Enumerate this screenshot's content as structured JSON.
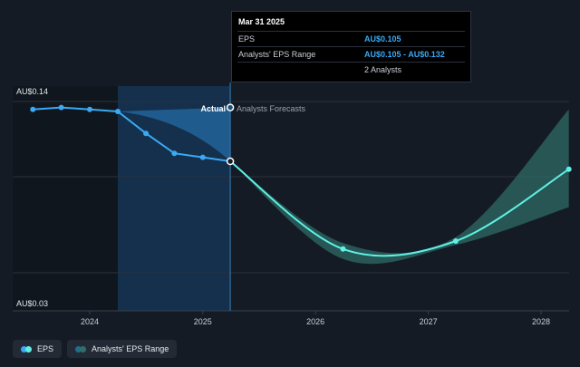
{
  "chart_data": {
    "type": "line",
    "y_axis": {
      "min": 0.03,
      "max": 0.14,
      "top_label": "AU$0.14",
      "bottom_label": "AU$0.03"
    },
    "x_ticks": [
      "2024",
      "2025",
      "2026",
      "2027",
      "2028"
    ],
    "region_labels": {
      "actual": "Actual",
      "forecast": "Analysts Forecasts"
    },
    "series": [
      {
        "name": "EPS",
        "color": "#3aa9f4",
        "points": [
          {
            "date": "2023-07-01",
            "value": 0.131
          },
          {
            "date": "2023-10-01",
            "value": 0.132
          },
          {
            "date": "2024-01-01",
            "value": 0.131
          },
          {
            "date": "2024-04-01",
            "value": 0.13
          },
          {
            "date": "2024-07-01",
            "value": 0.119
          },
          {
            "date": "2024-10-01",
            "value": 0.109
          },
          {
            "date": "2025-01-01",
            "value": 0.107
          },
          {
            "date": "2025-03-31",
            "value": 0.105
          }
        ]
      },
      {
        "name": "EPS Forecast",
        "color": "#5ff0e6",
        "points": [
          {
            "date": "2025-03-31",
            "value": 0.105
          },
          {
            "date": "2026-03-31",
            "value": 0.061
          },
          {
            "date": "2027-03-31",
            "value": 0.065
          },
          {
            "date": "2028-03-31",
            "value": 0.101
          }
        ]
      }
    ],
    "analyst_range_past": {
      "upper": [
        0.13,
        0.132
      ],
      "lower": [
        0.13,
        0.105
      ],
      "dates": [
        "2024-04-01",
        "2025-03-31"
      ]
    },
    "analyst_range_forecast": {
      "dates": [
        "2025-03-31",
        "2026-03-31",
        "2027-03-31",
        "2028-03-31"
      ],
      "upper": [
        0.105,
        0.064,
        0.067,
        0.131
      ],
      "lower": [
        0.105,
        0.056,
        0.063,
        0.082
      ]
    }
  },
  "tooltip": {
    "date": "Mar 31 2025",
    "eps_label": "EPS",
    "eps_value": "AU$0.105",
    "range_label": "Analysts' EPS Range",
    "range_value": "AU$0.105 - AU$0.132",
    "analysts": "2 Analysts"
  },
  "legend": {
    "eps": "EPS",
    "range": "Analysts' EPS Range"
  },
  "colors": {
    "background": "#151b24",
    "eps_line": "#3aa9f4",
    "forecast_line": "#5ff0e6",
    "range_fill": "#2f6f6a",
    "highlight": "#1c4f7a"
  }
}
